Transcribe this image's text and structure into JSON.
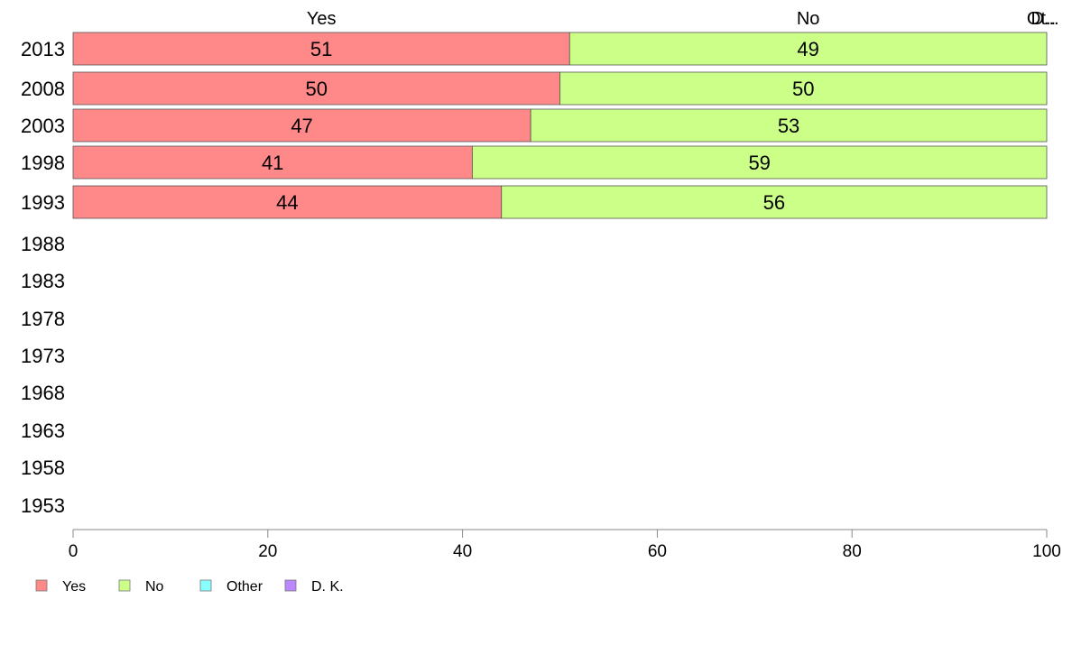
{
  "chart_data": {
    "type": "bar",
    "orientation": "horizontal",
    "stacked": true,
    "categories": [
      "2013",
      "2008",
      "2003",
      "1998",
      "1993",
      "1988",
      "1983",
      "1978",
      "1973",
      "1968",
      "1963",
      "1958",
      "1953"
    ],
    "series": [
      {
        "name": "Yes",
        "values": [
          51,
          50,
          47,
          41,
          44,
          null,
          null,
          null,
          null,
          null,
          null,
          null,
          null
        ],
        "color": "#ff8888"
      },
      {
        "name": "No",
        "values": [
          49,
          50,
          53,
          59,
          56,
          null,
          null,
          null,
          null,
          null,
          null,
          null,
          null
        ],
        "color": "#ccff88"
      },
      {
        "name": "Other",
        "values": [
          0,
          0,
          0,
          0,
          0,
          null,
          null,
          null,
          null,
          null,
          null,
          null,
          null
        ],
        "color": "#88ffff"
      },
      {
        "name": "D. K.",
        "values": [
          0,
          0,
          0,
          0,
          0,
          null,
          null,
          null,
          null,
          null,
          null,
          null,
          null
        ],
        "color": "#bb88ff"
      }
    ],
    "top_labels": [
      "Yes",
      "No",
      "Ot..",
      "D..."
    ],
    "xlim": [
      0,
      100
    ],
    "xticks": [
      0,
      20,
      40,
      60,
      80,
      100
    ],
    "xlabel": "",
    "ylabel": "",
    "grid": false,
    "legend_position": "bottom"
  }
}
